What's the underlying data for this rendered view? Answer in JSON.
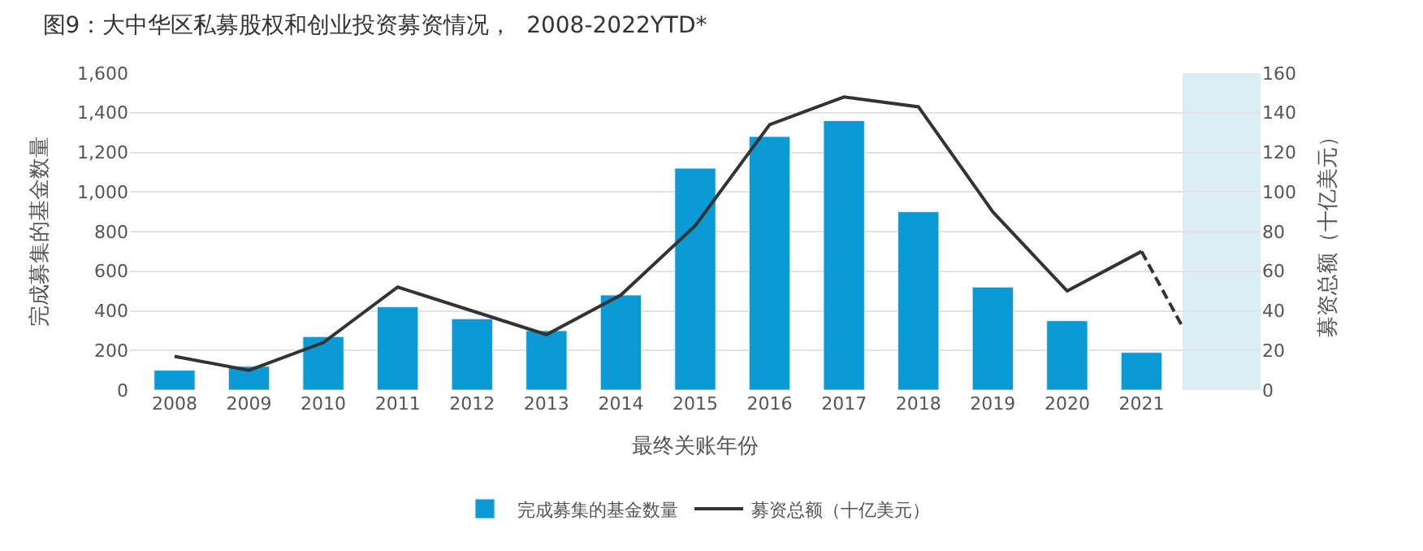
{
  "chart_data": {
    "type": "bar",
    "title": "图9：大中华区私募股权和创业投资募资情况，  2008-2022YTD*",
    "xlabel": "最终关账年份",
    "ylabel": "完成募集的基金数量",
    "y2label": "募资总额（十亿美元）",
    "x": [
      2008,
      2009,
      2010,
      2011,
      2012,
      2013,
      2014,
      2015,
      2016,
      2017,
      2018,
      2019,
      2020,
      2021
    ],
    "xlim": [
      2007.4,
      2022.6
    ],
    "xticks": [
      2008,
      2009,
      2010,
      2011,
      2012,
      2013,
      2014,
      2015,
      2016,
      2017,
      2018,
      2019,
      2020,
      2021
    ],
    "series": [
      {
        "name": "完成募集的基金数量",
        "color": "#0a9ad6",
        "values": [
          100,
          120,
          270,
          420,
          360,
          300,
          480,
          1120,
          1280,
          1360,
          900,
          520,
          350,
          190
        ]
      },
      {
        "name": "募资总额（十亿美元）",
        "type": "line",
        "axis": "y2",
        "color": "#333333",
        "line_style": "solid",
        "values": [
          17,
          10,
          24,
          52,
          40,
          28,
          48,
          83,
          134,
          148,
          143,
          90,
          50,
          70
        ]
      },
      {
        "type": "line",
        "axis": "y2",
        "color": "#333333",
        "line_style": "dashed",
        "x": [
          2021,
          2021.55
        ],
        "values": [
          70,
          32
        ]
      }
    ],
    "ylim": [
      0,
      1600
    ],
    "yticks": [
      0,
      200,
      400,
      600,
      800,
      {
        "value": 1000,
        "label": "1,000"
      },
      {
        "value": 1200,
        "label": "1,200"
      },
      {
        "value": 1400,
        "label": "1,400"
      },
      {
        "value": 1600,
        "label": "1,600"
      }
    ],
    "y2lim": [
      0,
      160
    ],
    "y2ticks": [
      0,
      20,
      40,
      60,
      80,
      100,
      120,
      140,
      160
    ],
    "bands": [
      {
        "axis": "x",
        "from": 2021.55,
        "to": 2022.6,
        "color": "#ddedf6"
      }
    ],
    "grid": "y",
    "legend": "bottom"
  }
}
